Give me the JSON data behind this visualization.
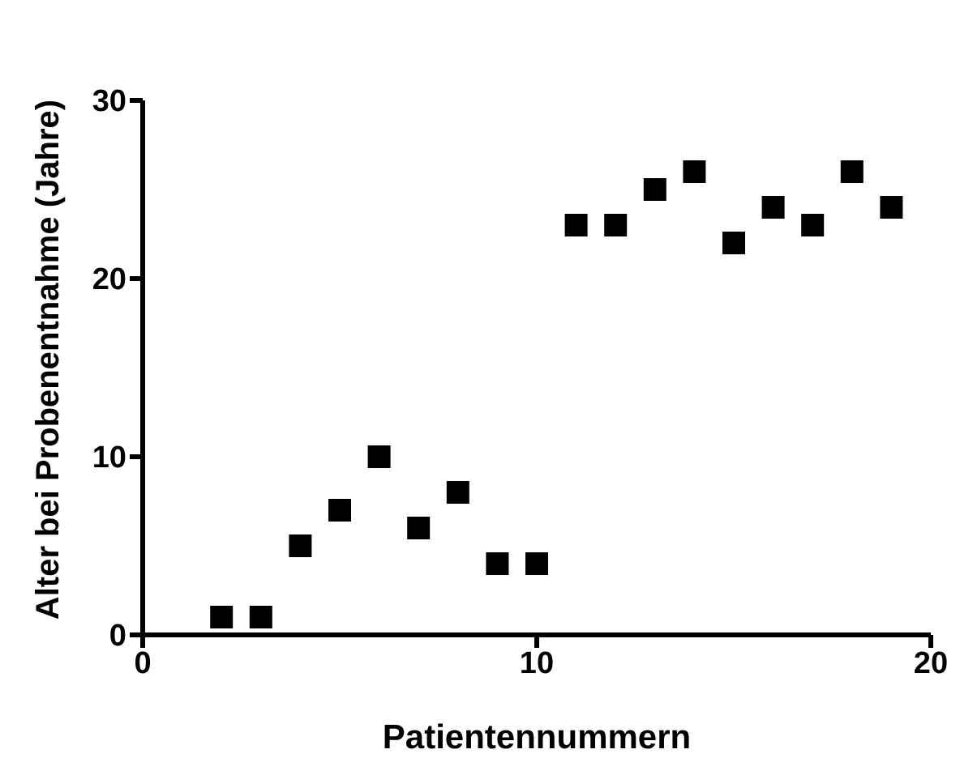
{
  "chart_data": {
    "type": "scatter",
    "xlabel": "Patientennummern",
    "ylabel": "Alter bei Probenentnahme (Jahre)",
    "x": [
      2,
      3,
      4,
      5,
      6,
      7,
      8,
      9,
      10,
      11,
      12,
      13,
      14,
      15,
      16,
      17,
      18,
      19
    ],
    "values": [
      1,
      1,
      5,
      7,
      10,
      6,
      8,
      4,
      4,
      23,
      23,
      25,
      26,
      22,
      24,
      23,
      26,
      24
    ],
    "color": "#000000",
    "marker": "square",
    "xlim": [
      0,
      20
    ],
    "xticks": [
      0,
      10,
      20
    ],
    "ylim": [
      0,
      30
    ],
    "yticks": [
      0,
      10,
      20,
      30
    ],
    "grid": false
  }
}
